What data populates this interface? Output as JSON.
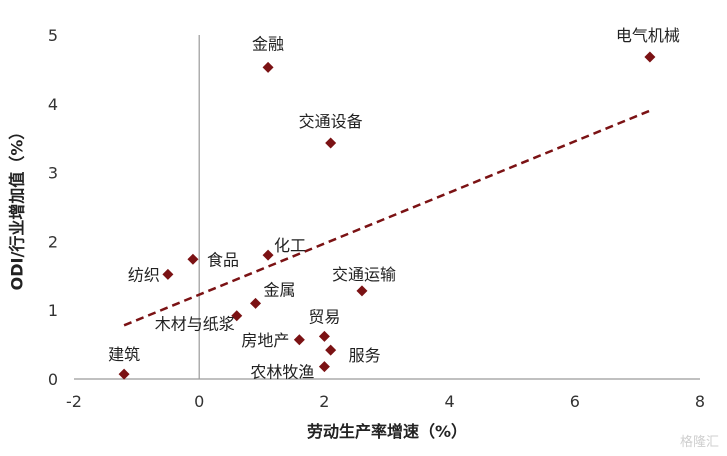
{
  "chart_data": {
    "type": "scatter",
    "xlabel": "劳动生产率增速（%）",
    "ylabel": "ODI/行业增加值（%）",
    "xlim": [
      -2,
      8
    ],
    "ylim": [
      0,
      5
    ],
    "x_ticks": [
      -2,
      0,
      2,
      4,
      6,
      8
    ],
    "y_ticks": [
      0,
      1,
      2,
      3,
      4,
      5
    ],
    "marker_color": "#7b1214",
    "trendline": {
      "style": "dashed",
      "color": "#7b1214",
      "x": [
        -1.2,
        7.2
      ],
      "y": [
        0.78,
        3.9
      ]
    },
    "points": [
      {
        "label": "金融",
        "x": 1.1,
        "y": 4.53
      },
      {
        "label": "电气机械",
        "x": 7.2,
        "y": 4.68
      },
      {
        "label": "交通设备",
        "x": 2.1,
        "y": 3.43
      },
      {
        "label": "化工",
        "x": 1.1,
        "y": 1.8
      },
      {
        "label": "食品",
        "x": -0.1,
        "y": 1.74
      },
      {
        "label": "纺织",
        "x": -0.5,
        "y": 1.52
      },
      {
        "label": "交通运输",
        "x": 2.6,
        "y": 1.28
      },
      {
        "label": "金属",
        "x": 0.9,
        "y": 1.1
      },
      {
        "label": "木材与纸浆",
        "x": 0.6,
        "y": 0.92
      },
      {
        "label": "贸易",
        "x": 2.0,
        "y": 0.62
      },
      {
        "label": "房地产",
        "x": 1.6,
        "y": 0.57
      },
      {
        "label": "服务",
        "x": 2.1,
        "y": 0.42
      },
      {
        "label": "建筑",
        "x": -1.2,
        "y": 0.07
      },
      {
        "label": "农林牧渔",
        "x": 2.0,
        "y": 0.18
      }
    ]
  },
  "watermark": "格隆汇"
}
